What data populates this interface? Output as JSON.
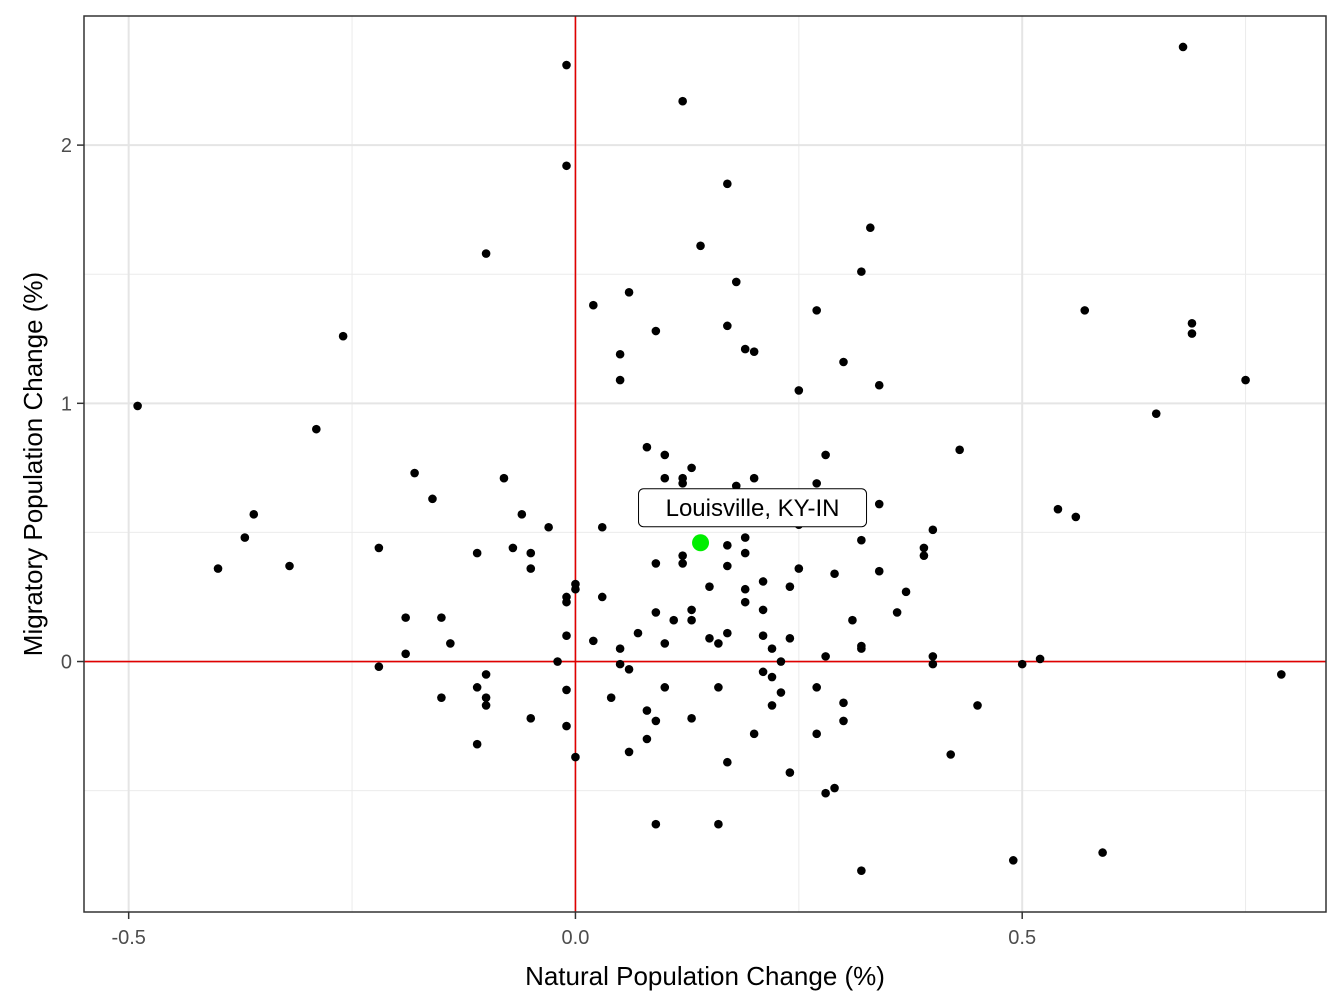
{
  "chart_data": {
    "type": "scatter",
    "title": "",
    "xlabel": "Natural Population Change (%)",
    "ylabel": "Migratory Population Change (%)",
    "xlim": [
      -0.55,
      0.84
    ],
    "ylim": [
      -0.97,
      2.5
    ],
    "x_ticks": [
      -0.5,
      0.0,
      0.5
    ],
    "x_tick_labels": [
      "-0.5",
      "0.0",
      "0.5"
    ],
    "y_ticks": [
      0,
      1,
      2
    ],
    "y_tick_labels": [
      "0",
      "1",
      "2"
    ],
    "grid": true,
    "reference_lines": {
      "x": 0,
      "y": 0,
      "color": "#e00000"
    },
    "point_color": "#000000",
    "highlight": {
      "label": "Louisville, KY-IN",
      "x": 0.14,
      "y": 0.46,
      "color": "#00ee00"
    },
    "points": [
      [
        0.68,
        2.38
      ],
      [
        -0.01,
        2.31
      ],
      [
        0.12,
        2.17
      ],
      [
        -0.01,
        1.92
      ],
      [
        0.17,
        1.85
      ],
      [
        0.33,
        1.68
      ],
      [
        0.14,
        1.61
      ],
      [
        -0.1,
        1.58
      ],
      [
        0.32,
        1.51
      ],
      [
        0.18,
        1.47
      ],
      [
        0.06,
        1.43
      ],
      [
        0.02,
        1.38
      ],
      [
        0.27,
        1.36
      ],
      [
        0.57,
        1.36
      ],
      [
        0.69,
        1.31
      ],
      [
        0.17,
        1.3
      ],
      [
        0.09,
        1.28
      ],
      [
        0.69,
        1.27
      ],
      [
        -0.26,
        1.26
      ],
      [
        0.19,
        1.21
      ],
      [
        0.2,
        1.2
      ],
      [
        0.05,
        1.19
      ],
      [
        0.3,
        1.16
      ],
      [
        0.05,
        1.09
      ],
      [
        0.75,
        1.09
      ],
      [
        0.34,
        1.07
      ],
      [
        0.25,
        1.05
      ],
      [
        -0.49,
        0.99
      ],
      [
        0.65,
        0.96
      ],
      [
        -0.29,
        0.9
      ],
      [
        0.08,
        0.83
      ],
      [
        0.43,
        0.82
      ],
      [
        0.1,
        0.8
      ],
      [
        0.28,
        0.8
      ],
      [
        0.13,
        0.75
      ],
      [
        -0.18,
        0.73
      ],
      [
        -0.08,
        0.71
      ],
      [
        0.1,
        0.71
      ],
      [
        0.12,
        0.71
      ],
      [
        0.2,
        0.71
      ],
      [
        0.12,
        0.69
      ],
      [
        0.27,
        0.69
      ],
      [
        0.18,
        0.68
      ],
      [
        -0.16,
        0.63
      ],
      [
        0.34,
        0.61
      ],
      [
        0.54,
        0.59
      ],
      [
        -0.36,
        0.57
      ],
      [
        -0.06,
        0.57
      ],
      [
        0.56,
        0.56
      ],
      [
        0.11,
        0.54
      ],
      [
        0.25,
        0.53
      ],
      [
        -0.03,
        0.52
      ],
      [
        0.03,
        0.52
      ],
      [
        0.4,
        0.51
      ],
      [
        -0.37,
        0.48
      ],
      [
        0.19,
        0.48
      ],
      [
        0.32,
        0.47
      ],
      [
        0.17,
        0.45
      ],
      [
        -0.22,
        0.44
      ],
      [
        -0.07,
        0.44
      ],
      [
        0.39,
        0.44
      ],
      [
        -0.11,
        0.42
      ],
      [
        -0.05,
        0.42
      ],
      [
        0.19,
        0.42
      ],
      [
        0.12,
        0.41
      ],
      [
        0.39,
        0.41
      ],
      [
        0.09,
        0.38
      ],
      [
        0.12,
        0.38
      ],
      [
        0.17,
        0.37
      ],
      [
        -0.4,
        0.36
      ],
      [
        -0.32,
        0.37
      ],
      [
        -0.05,
        0.36
      ],
      [
        0.25,
        0.36
      ],
      [
        0.34,
        0.35
      ],
      [
        0.29,
        0.34
      ],
      [
        0.21,
        0.31
      ],
      [
        0.0,
        0.3
      ],
      [
        0.15,
        0.29
      ],
      [
        0.24,
        0.29
      ],
      [
        0.0,
        0.28
      ],
      [
        0.19,
        0.28
      ],
      [
        0.37,
        0.27
      ],
      [
        0.03,
        0.25
      ],
      [
        -0.01,
        0.25
      ],
      [
        -0.01,
        0.23
      ],
      [
        0.19,
        0.23
      ],
      [
        0.13,
        0.2
      ],
      [
        0.21,
        0.2
      ],
      [
        0.09,
        0.19
      ],
      [
        0.36,
        0.19
      ],
      [
        -0.19,
        0.17
      ],
      [
        -0.15,
        0.17
      ],
      [
        0.11,
        0.16
      ],
      [
        0.13,
        0.16
      ],
      [
        0.31,
        0.16
      ],
      [
        0.07,
        0.11
      ],
      [
        0.17,
        0.11
      ],
      [
        -0.01,
        0.1
      ],
      [
        0.21,
        0.1
      ],
      [
        0.15,
        0.09
      ],
      [
        0.24,
        0.09
      ],
      [
        0.02,
        0.08
      ],
      [
        -0.14,
        0.07
      ],
      [
        0.1,
        0.07
      ],
      [
        0.16,
        0.07
      ],
      [
        0.05,
        0.05
      ],
      [
        0.22,
        0.05
      ],
      [
        0.32,
        0.06
      ],
      [
        0.32,
        0.05
      ],
      [
        -0.19,
        0.03
      ],
      [
        0.28,
        0.02
      ],
      [
        0.4,
        0.02
      ],
      [
        0.52,
        0.01
      ],
      [
        -0.02,
        0.0
      ],
      [
        0.23,
        0.0
      ],
      [
        0.05,
        -0.01
      ],
      [
        0.4,
        -0.01
      ],
      [
        0.5,
        -0.01
      ],
      [
        -0.22,
        -0.02
      ],
      [
        0.06,
        -0.03
      ],
      [
        0.21,
        -0.04
      ],
      [
        -0.1,
        -0.05
      ],
      [
        0.79,
        -0.05
      ],
      [
        0.22,
        -0.06
      ],
      [
        -0.11,
        -0.1
      ],
      [
        0.1,
        -0.1
      ],
      [
        0.16,
        -0.1
      ],
      [
        -0.01,
        -0.11
      ],
      [
        0.23,
        -0.12
      ],
      [
        0.27,
        -0.1
      ],
      [
        -0.15,
        -0.14
      ],
      [
        -0.1,
        -0.14
      ],
      [
        0.04,
        -0.14
      ],
      [
        0.3,
        -0.16
      ],
      [
        -0.1,
        -0.17
      ],
      [
        0.22,
        -0.17
      ],
      [
        0.45,
        -0.17
      ],
      [
        0.08,
        -0.19
      ],
      [
        -0.05,
        -0.22
      ],
      [
        0.09,
        -0.23
      ],
      [
        0.13,
        -0.22
      ],
      [
        0.3,
        -0.23
      ],
      [
        -0.01,
        -0.25
      ],
      [
        0.2,
        -0.28
      ],
      [
        0.27,
        -0.28
      ],
      [
        0.08,
        -0.3
      ],
      [
        -0.11,
        -0.32
      ],
      [
        0.06,
        -0.35
      ],
      [
        0.42,
        -0.36
      ],
      [
        0.0,
        -0.37
      ],
      [
        0.17,
        -0.39
      ],
      [
        0.24,
        -0.43
      ],
      [
        0.29,
        -0.49
      ],
      [
        0.28,
        -0.51
      ],
      [
        0.09,
        -0.63
      ],
      [
        0.16,
        -0.63
      ],
      [
        0.59,
        -0.74
      ],
      [
        0.49,
        -0.77
      ],
      [
        0.32,
        -0.81
      ]
    ]
  }
}
